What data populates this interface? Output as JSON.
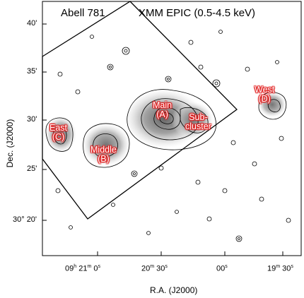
{
  "figure": {
    "title_left": "Abell 781",
    "title_right": "XMM EPIC (0.5-4.5 keV)",
    "xlabel": "R.A. (J2000)",
    "ylabel": "Dec. (J2000)",
    "x_ticks": [
      {
        "h": "09",
        "m": "21",
        "s": "0",
        "label_parts": [
          "09",
          "h",
          "21",
          "m",
          "0",
          "s"
        ]
      },
      {
        "label_parts": [
          "20",
          "m",
          "30",
          "s"
        ]
      },
      {
        "label_parts": [
          "00",
          "s"
        ]
      },
      {
        "label_parts": [
          "19",
          "m",
          "30",
          "s"
        ]
      }
    ],
    "y_ticks": [
      "40'",
      "35'",
      "30'",
      "25'",
      "30° 20'"
    ],
    "annotations": {
      "main": [
        "Main",
        "(A)"
      ],
      "sub": [
        "Sub-",
        "cluster"
      ],
      "west": [
        "West",
        "(D)"
      ],
      "east": [
        "East",
        "(C)"
      ],
      "middle": [
        "Middle",
        "(B)"
      ]
    },
    "colors": {
      "annotation_glow": "#e01e1e",
      "frame": "#000000"
    }
  }
}
